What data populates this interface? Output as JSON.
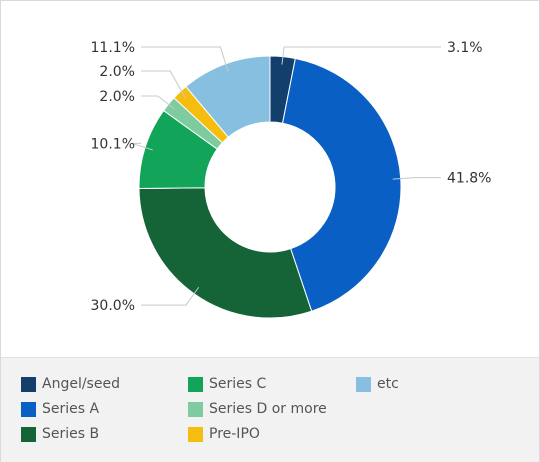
{
  "chart_data": {
    "type": "pie",
    "title": "",
    "donut": true,
    "slices": [
      {
        "label": "Angel/seed",
        "value": 3.1,
        "value_label": "3.1%",
        "color": "#123f6b"
      },
      {
        "label": "Series A",
        "value": 41.8,
        "value_label": "41.8%",
        "color": "#0a5fc5"
      },
      {
        "label": "Series B",
        "value": 30.0,
        "value_label": "30.0%",
        "color": "#146438"
      },
      {
        "label": "Series C",
        "value": 10.1,
        "value_label": "10.1%",
        "color": "#12a559"
      },
      {
        "label": "Series D or more",
        "value": 2.0,
        "value_label": "2.0%",
        "color": "#7ecb9f"
      },
      {
        "label": "Pre-IPO",
        "value": 2.0,
        "value_label": "2.0%",
        "color": "#f5bd0f"
      },
      {
        "label": "etc",
        "value": 11.1,
        "value_label": "11.1%",
        "color": "#86bfe0"
      }
    ],
    "legend_position": "bottom"
  }
}
